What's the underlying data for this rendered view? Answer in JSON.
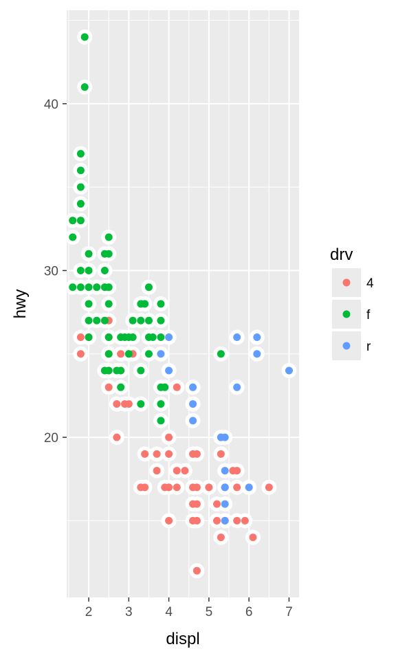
{
  "chart_data": {
    "type": "scatter",
    "title": "",
    "xlabel": "displ",
    "ylabel": "hwy",
    "xlim": [
      1.45,
      7.25
    ],
    "ylim": [
      10.4,
      45.6
    ],
    "x_ticks": [
      2,
      3,
      4,
      5,
      6,
      7
    ],
    "y_ticks": [
      20,
      30,
      40
    ],
    "grid": true,
    "legend": {
      "title": "drv",
      "position": "right",
      "entries": [
        "4",
        "f",
        "r"
      ]
    },
    "colors": {
      "4": "#F8766D",
      "f": "#00BA38",
      "r": "#619CFF",
      "panel": "#EBEBEB",
      "grid": "#FFFFFF"
    },
    "series": [
      {
        "name": "4",
        "points": [
          [
            1.8,
            26
          ],
          [
            1.8,
            25
          ],
          [
            2.0,
            26
          ],
          [
            2.5,
            27
          ],
          [
            2.5,
            26
          ],
          [
            2.5,
            25
          ],
          [
            2.5,
            24
          ],
          [
            2.5,
            23
          ],
          [
            2.7,
            22
          ],
          [
            2.8,
            25
          ],
          [
            2.9,
            22
          ],
          [
            3.0,
            22
          ],
          [
            3.1,
            25
          ],
          [
            2.7,
            20
          ],
          [
            3.3,
            17
          ],
          [
            3.4,
            17
          ],
          [
            3.4,
            19
          ],
          [
            3.7,
            19
          ],
          [
            3.7,
            18
          ],
          [
            3.9,
            17
          ],
          [
            4.0,
            20
          ],
          [
            4.0,
            19
          ],
          [
            4.0,
            17
          ],
          [
            4.0,
            15
          ],
          [
            4.2,
            23
          ],
          [
            4.2,
            18
          ],
          [
            4.2,
            17
          ],
          [
            4.4,
            18
          ],
          [
            4.6,
            19
          ],
          [
            4.6,
            17
          ],
          [
            4.6,
            16
          ],
          [
            4.6,
            15
          ],
          [
            4.7,
            19
          ],
          [
            4.7,
            17
          ],
          [
            4.7,
            16
          ],
          [
            4.7,
            15
          ],
          [
            4.7,
            12
          ],
          [
            5.0,
            17
          ],
          [
            5.2,
            16
          ],
          [
            5.2,
            15
          ],
          [
            5.3,
            20
          ],
          [
            5.3,
            19
          ],
          [
            5.3,
            14
          ],
          [
            5.4,
            17
          ],
          [
            5.4,
            15
          ],
          [
            5.6,
            18
          ],
          [
            5.7,
            18
          ],
          [
            5.7,
            17
          ],
          [
            5.7,
            15
          ],
          [
            5.9,
            15
          ],
          [
            6.1,
            14
          ],
          [
            6.5,
            17
          ]
        ]
      },
      {
        "name": "f",
        "points": [
          [
            1.6,
            33
          ],
          [
            1.6,
            32
          ],
          [
            1.6,
            29
          ],
          [
            1.8,
            37
          ],
          [
            1.8,
            36
          ],
          [
            1.8,
            35
          ],
          [
            1.8,
            34
          ],
          [
            1.8,
            33
          ],
          [
            1.8,
            30
          ],
          [
            1.8,
            29
          ],
          [
            1.9,
            44
          ],
          [
            1.9,
            41
          ],
          [
            2.0,
            31
          ],
          [
            2.0,
            30
          ],
          [
            2.0,
            29
          ],
          [
            2.0,
            28
          ],
          [
            2.0,
            27
          ],
          [
            2.0,
            26
          ],
          [
            2.2,
            29
          ],
          [
            2.2,
            27
          ],
          [
            2.4,
            31
          ],
          [
            2.4,
            30
          ],
          [
            2.4,
            29
          ],
          [
            2.4,
            27
          ],
          [
            2.4,
            24
          ],
          [
            2.5,
            32
          ],
          [
            2.5,
            31
          ],
          [
            2.5,
            29
          ],
          [
            2.5,
            28
          ],
          [
            2.5,
            26
          ],
          [
            2.5,
            25
          ],
          [
            2.5,
            24
          ],
          [
            2.7,
            24
          ],
          [
            2.8,
            26
          ],
          [
            2.8,
            24
          ],
          [
            2.8,
            23
          ],
          [
            2.9,
            26
          ],
          [
            3.0,
            26
          ],
          [
            3.0,
            25
          ],
          [
            3.1,
            26
          ],
          [
            3.1,
            27
          ],
          [
            3.3,
            28
          ],
          [
            3.3,
            27
          ],
          [
            3.3,
            24
          ],
          [
            3.3,
            22
          ],
          [
            3.4,
            28
          ],
          [
            3.5,
            29
          ],
          [
            3.5,
            27
          ],
          [
            3.5,
            26
          ],
          [
            3.5,
            25
          ],
          [
            3.6,
            26
          ],
          [
            3.8,
            28
          ],
          [
            3.8,
            27
          ],
          [
            3.8,
            26
          ],
          [
            3.8,
            23
          ],
          [
            3.8,
            22
          ],
          [
            3.8,
            21
          ],
          [
            3.9,
            23
          ],
          [
            5.3,
            25
          ]
        ]
      },
      {
        "name": "r",
        "points": [
          [
            3.8,
            25
          ],
          [
            4.0,
            26
          ],
          [
            4.0,
            24
          ],
          [
            4.6,
            23
          ],
          [
            4.6,
            22
          ],
          [
            4.6,
            21
          ],
          [
            5.3,
            20
          ],
          [
            5.4,
            20
          ],
          [
            5.4,
            18
          ],
          [
            5.4,
            17
          ],
          [
            5.4,
            16
          ],
          [
            5.4,
            15
          ],
          [
            5.7,
            26
          ],
          [
            5.7,
            23
          ],
          [
            6.0,
            17
          ],
          [
            6.2,
            26
          ],
          [
            6.2,
            25
          ],
          [
            7.0,
            24
          ]
        ]
      }
    ]
  }
}
